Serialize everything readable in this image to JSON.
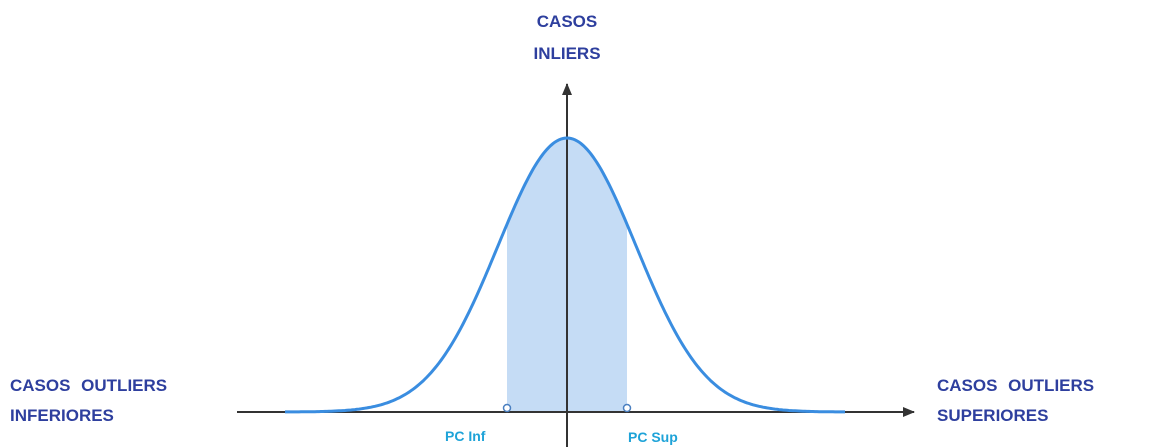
{
  "top_label": [
    "CASOS",
    "INLIERS"
  ],
  "left_label": [
    "CASOS OUTLIERS",
    "INFERIORES"
  ],
  "right_label": [
    "CASOS OUTLIERS",
    "SUPERIORES"
  ],
  "lower_cutoff": "PC Inf",
  "upper_cutoff": "PC Sup"
}
